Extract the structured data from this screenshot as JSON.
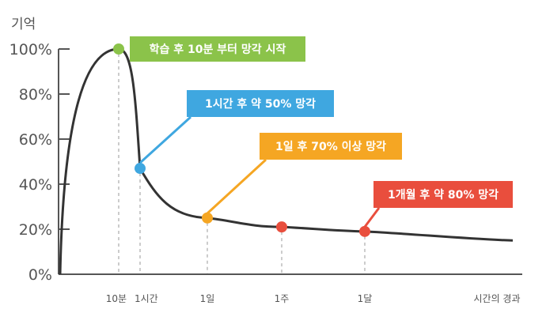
{
  "chart_data": {
    "type": "line",
    "ylabel": "기억",
    "xlabel": "시간의 경과",
    "y_ticks": [
      "0%",
      "20%",
      "40%",
      "60%",
      "80%",
      "100%"
    ],
    "ylim": [
      0,
      100
    ],
    "x_ticks": [
      "10분",
      "1시간",
      "1일",
      "1주",
      "1달"
    ],
    "series": [
      {
        "values": [
          0,
          100,
          47,
          25,
          21,
          19,
          15
        ]
      }
    ],
    "annotations": [
      {
        "label": "학습 후 10분 부터 망각 시작",
        "x": "10분",
        "y": 100,
        "color": "#8bc34a"
      },
      {
        "label": "1시간 후 약 50% 망각",
        "x": "1시간",
        "y": 47,
        "color": "#3fa7e0"
      },
      {
        "label": "1일 후 70% 이상 망각",
        "x": "1일",
        "y": 25,
        "color": "#f5a623"
      },
      {
        "label": "",
        "x": "1주",
        "y": 21,
        "color": "#e94e3d"
      },
      {
        "label": "1개월 후 약 80% 망각",
        "x": "1달",
        "y": 19,
        "color": "#e94e3d"
      }
    ]
  }
}
